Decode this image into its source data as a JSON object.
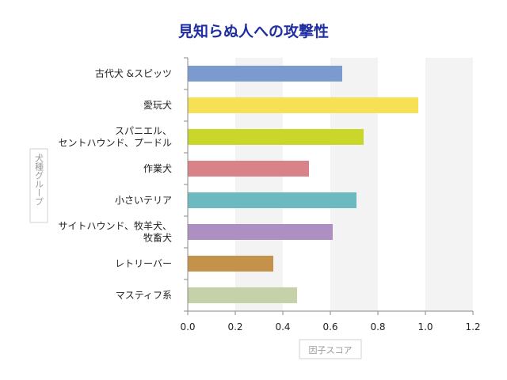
{
  "chart_data": {
    "type": "bar",
    "orientation": "horizontal",
    "title": "見知らぬ人への攻撃性",
    "xlabel": "因子スコア",
    "ylabel": "犬種グループ",
    "categories": [
      [
        "古代犬 &スピッツ"
      ],
      [
        "愛玩犬"
      ],
      [
        "スパニエル、",
        "セントハウンド、プードル"
      ],
      [
        "作業犬"
      ],
      [
        "小さいテリア"
      ],
      [
        "サイトハウンド、牧羊犬、",
        "牧畜犬"
      ],
      [
        "レトリーバー"
      ],
      [
        "マスティフ系"
      ]
    ],
    "values": [
      0.65,
      0.97,
      0.74,
      0.51,
      0.71,
      0.61,
      0.36,
      0.46
    ],
    "colors": [
      "#7b9bd0",
      "#f6e154",
      "#c8d72a",
      "#d98287",
      "#6cbac0",
      "#ad8fc2",
      "#c4924b",
      "#c5d1a8"
    ],
    "xlim": [
      0,
      1.2
    ],
    "xticks": [
      "0.0",
      "0.2",
      "0.4",
      "0.6",
      "0.8",
      "1.0",
      "1.2"
    ],
    "title_color": "#1f2ea0",
    "band_color": "#f3f3f3",
    "grid": false,
    "legend": "none"
  }
}
